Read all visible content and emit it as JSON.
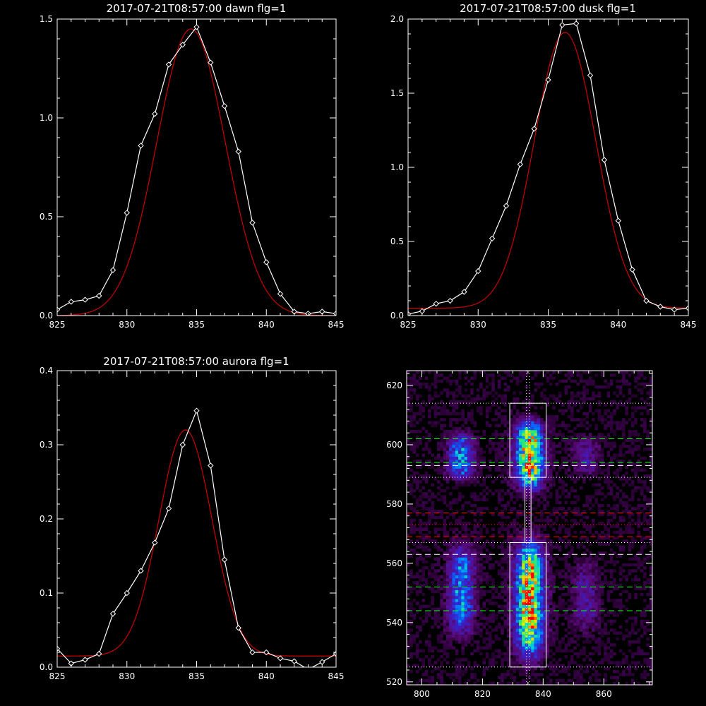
{
  "colors": {
    "background": "#000000",
    "data": "#ffffff",
    "fit": "#cc0000",
    "axis": "#ffffff"
  },
  "chart_data": [
    {
      "type": "line",
      "id": "dawn",
      "title": "2017-07-21T08:57:00 dawn flg=1",
      "xlim": [
        825,
        845
      ],
      "ylim": [
        0,
        1.5
      ],
      "xticks": [
        825,
        830,
        835,
        840,
        845
      ],
      "yticks": [
        0.0,
        0.5,
        1.0,
        1.5
      ],
      "ytick_labels": [
        "0.0",
        "0.5",
        "1.0",
        "1.5"
      ],
      "series": [
        {
          "role": "data",
          "color": "#ffffff",
          "marker": "diamond",
          "x": [
            825,
            826,
            827,
            828,
            829,
            830,
            831,
            832,
            833,
            834,
            835,
            836,
            837,
            838,
            839,
            840,
            841,
            842,
            843,
            844,
            845
          ],
          "y": [
            0.03,
            0.07,
            0.08,
            0.1,
            0.23,
            0.52,
            0.86,
            1.02,
            1.27,
            1.37,
            1.46,
            1.28,
            1.06,
            0.83,
            0.47,
            0.27,
            0.11,
            0.02,
            0.01,
            0.02,
            0.01
          ]
        },
        {
          "role": "fit",
          "color": "#cc0000",
          "gaussian": {
            "amp": 1.45,
            "center": 834.6,
            "sigma": 2.45,
            "offset": 0.0
          }
        }
      ]
    },
    {
      "type": "line",
      "id": "dusk",
      "title": "2017-07-21T08:57:00 dusk flg=1",
      "xlim": [
        825,
        845
      ],
      "ylim": [
        0,
        2.0
      ],
      "xticks": [
        825,
        830,
        835,
        840,
        845
      ],
      "yticks": [
        0.0,
        0.5,
        1.0,
        1.5,
        2.0
      ],
      "ytick_labels": [
        "0.0",
        "0.5",
        "1.0",
        "1.5",
        "2.0"
      ],
      "series": [
        {
          "role": "data",
          "color": "#ffffff",
          "marker": "diamond",
          "x": [
            825,
            826,
            827,
            828,
            829,
            830,
            831,
            832,
            833,
            834,
            835,
            836,
            837,
            838,
            839,
            840,
            841,
            842,
            843,
            844,
            845
          ],
          "y": [
            0.01,
            0.03,
            0.08,
            0.1,
            0.16,
            0.3,
            0.52,
            0.74,
            1.02,
            1.26,
            1.59,
            1.96,
            1.97,
            1.62,
            1.05,
            0.64,
            0.31,
            0.1,
            0.06,
            0.04,
            0.05
          ]
        },
        {
          "role": "fit",
          "color": "#cc0000",
          "gaussian": {
            "amp": 1.86,
            "center": 836.2,
            "sigma": 2.2,
            "offset": 0.05
          }
        }
      ]
    },
    {
      "type": "line",
      "id": "aurora",
      "title": "2017-07-21T08:57:00 aurora flg=1",
      "xlim": [
        825,
        845
      ],
      "ylim": [
        0,
        0.4
      ],
      "xticks": [
        825,
        830,
        835,
        840,
        845
      ],
      "yticks": [
        0.0,
        0.1,
        0.2,
        0.3,
        0.4
      ],
      "ytick_labels": [
        "0.0",
        "0.1",
        "0.2",
        "0.3",
        "0.4"
      ],
      "series": [
        {
          "role": "data",
          "color": "#ffffff",
          "marker": "diamond",
          "x": [
            825,
            826,
            827,
            828,
            829,
            830,
            831,
            832,
            833,
            834,
            835,
            836,
            837,
            838,
            839,
            840,
            841,
            842,
            843,
            844,
            845
          ],
          "y": [
            0.025,
            0.005,
            0.01,
            0.018,
            0.072,
            0.1,
            0.13,
            0.168,
            0.214,
            0.3,
            0.346,
            0.272,
            0.145,
            0.053,
            0.02,
            0.02,
            0.012,
            0.008,
            -0.003,
            0.007,
            0.018
          ]
        },
        {
          "role": "fit",
          "color": "#cc0000",
          "gaussian": {
            "amp": 0.305,
            "center": 834.2,
            "sigma": 1.9,
            "offset": 0.015
          }
        }
      ]
    },
    {
      "type": "heatmap",
      "id": "spectral-image",
      "title": "",
      "colormap": "rainbow-on-purple",
      "xlim": [
        795,
        876
      ],
      "ylim": [
        519,
        625
      ],
      "xticks": [
        800,
        820,
        840,
        860
      ],
      "yticks": [
        520,
        540,
        560,
        580,
        600,
        620
      ],
      "emission_bands": [
        {
          "x_center": 813,
          "x_width": 3.0,
          "y_ranges": [
            [
              589,
              603
            ],
            [
              537,
              565
            ]
          ],
          "strength": 0.55
        },
        {
          "x_center": 835.5,
          "x_width": 3.2,
          "y_ranges": [
            [
              586,
              607
            ],
            [
              530,
              566
            ]
          ],
          "strength": 1.0
        },
        {
          "x_center": 854,
          "x_width": 3.0,
          "y_ranges": [
            [
              590,
              602
            ],
            [
              538,
              560
            ]
          ],
          "strength": 0.25
        }
      ],
      "boxes": [
        {
          "x": [
            829,
            841
          ],
          "y": [
            589,
            614
          ]
        },
        {
          "x": [
            829,
            841
          ],
          "y": [
            525,
            567
          ]
        },
        {
          "x": [
            834,
            836
          ],
          "y": [
            567,
            589
          ]
        }
      ],
      "hlines": [
        {
          "y": 614,
          "style": "dotted",
          "color": "#ffffff"
        },
        {
          "y": 602,
          "style": "dashed",
          "color": "#00ff00"
        },
        {
          "y": 594,
          "style": "dashed",
          "color": "#00ff00"
        },
        {
          "y": 593,
          "style": "dashed",
          "color": "#ffffff"
        },
        {
          "y": 589,
          "style": "dotted",
          "color": "#ffffff"
        },
        {
          "y": 577,
          "style": "dashed",
          "color": "#ff0000"
        },
        {
          "y": 573,
          "style": "dotted",
          "color": "#ff0000"
        },
        {
          "y": 569,
          "style": "dashed",
          "color": "#ff0000"
        },
        {
          "y": 567,
          "style": "dotted",
          "color": "#ffffff"
        },
        {
          "y": 563,
          "style": "dashed",
          "color": "#ffffff"
        },
        {
          "y": 552,
          "style": "dashed",
          "color": "#00ff00"
        },
        {
          "y": 544,
          "style": "dashed",
          "color": "#00ff00"
        },
        {
          "y": 525,
          "style": "dotted",
          "color": "#ffffff"
        }
      ],
      "vlines": [
        {
          "x": 834.5,
          "style": "dotted",
          "color": "#ffffff"
        },
        {
          "x": 835.5,
          "style": "dotted",
          "color": "#ffffff"
        }
      ]
    }
  ]
}
